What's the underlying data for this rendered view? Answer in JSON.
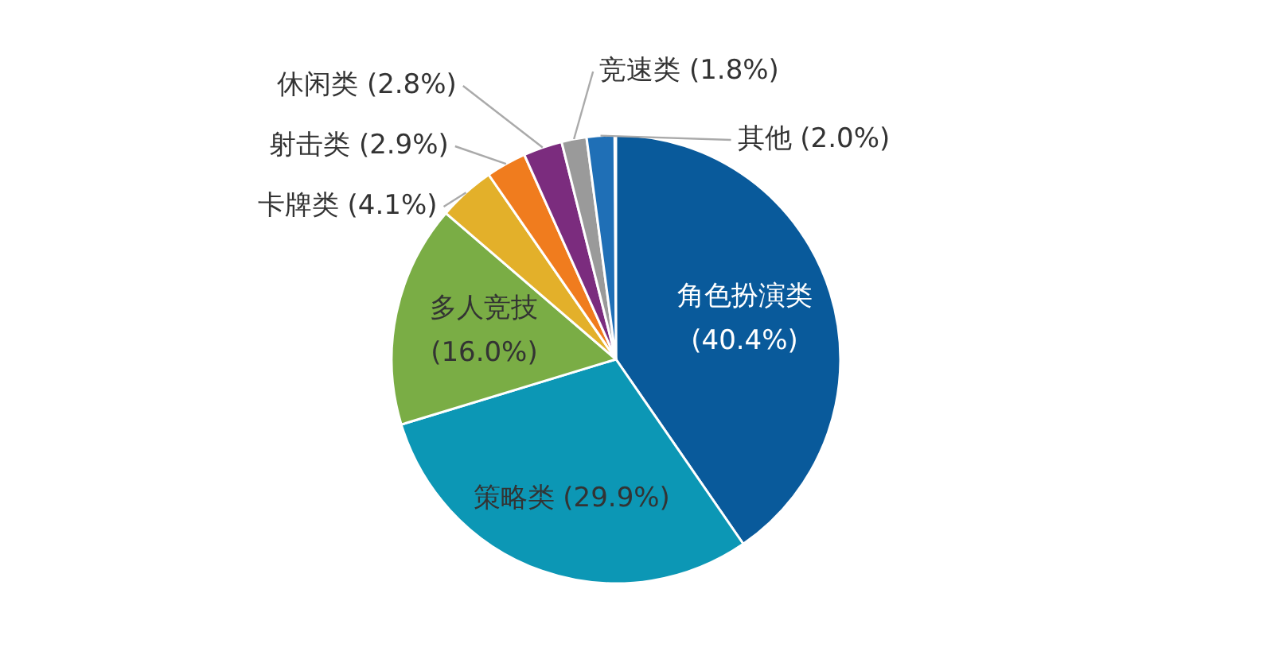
{
  "chart_data": {
    "type": "pie",
    "categories": [
      "角色扮演类",
      "策略类",
      "多人竞技",
      "卡牌类",
      "射击类",
      "休闲类",
      "竞速类",
      "其他"
    ],
    "values": [
      40.4,
      29.9,
      16.0,
      4.1,
      2.9,
      2.8,
      1.8,
      2.0
    ],
    "colors": [
      "#095a9b",
      "#0c97b5",
      "#7aad45",
      "#e3b02a",
      "#f07c1e",
      "#7b2c7e",
      "#9a9a9a",
      "#1f6fb6"
    ],
    "value_labels": [
      "(40.4%)",
      "(29.9%)",
      "(16.0%)",
      "(4.1%)",
      "(2.9%)",
      "(2.8%)",
      "(1.8%)",
      "(2.0%)"
    ]
  }
}
